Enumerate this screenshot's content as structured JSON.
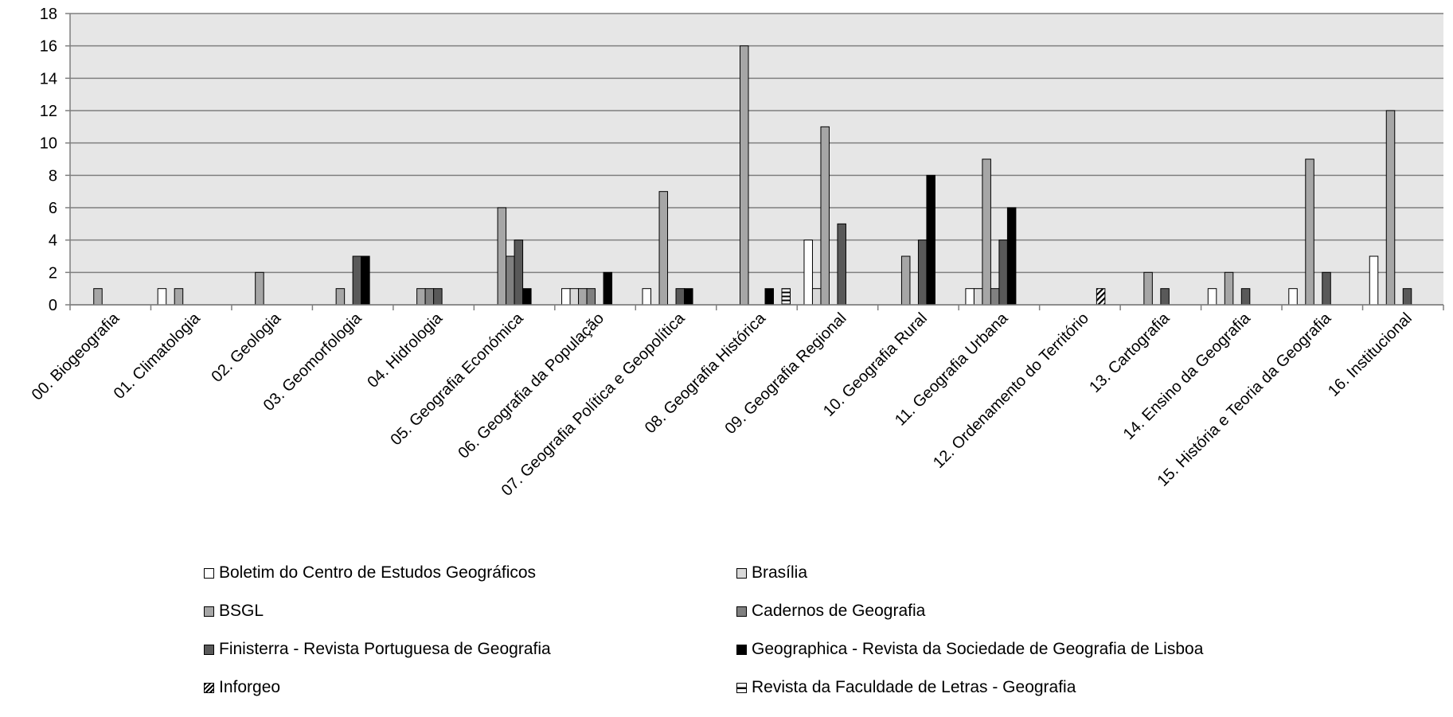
{
  "chart_data": {
    "type": "bar",
    "title": "",
    "xlabel": "",
    "ylabel": "",
    "ylim": [
      0,
      18
    ],
    "yticks": [
      0,
      2,
      4,
      6,
      8,
      10,
      12,
      14,
      16,
      18
    ],
    "grid": true,
    "legend_position": "bottom",
    "categories": [
      "00. Biogeografia",
      "01. Climatologia",
      "02. Geologia",
      "03. Geomorfologia",
      "04. Hidrologia",
      "05. Geografia Económica",
      "06. Geografia da População",
      "07. Geografia Política e Geopolítica",
      "08. Geografia Histórica",
      "09. Geografia Regional",
      "10. Geografia Rural",
      "11. Geografia Urbana",
      "12. Ordenamento do Território",
      "13. Cartografia",
      "14. Ensino da Geografia",
      "15. História e Teoria da Geografia",
      "16. Institucional"
    ],
    "series": [
      {
        "name": "Boletim do Centro de Estudos Geográficos",
        "fill": "#ffffff",
        "pattern": "none",
        "values": [
          0,
          1,
          0,
          0,
          0,
          0,
          1,
          1,
          0,
          4,
          0,
          1,
          0,
          0,
          1,
          1,
          3
        ]
      },
      {
        "name": "Brasília",
        "fill": "#d9d9d9",
        "pattern": "none",
        "values": [
          0,
          0,
          0,
          0,
          0,
          0,
          1,
          0,
          0,
          1,
          0,
          1,
          0,
          0,
          0,
          0,
          0
        ]
      },
      {
        "name": "BSGL",
        "fill": "#a6a6a6",
        "pattern": "none",
        "values": [
          1,
          1,
          2,
          1,
          1,
          6,
          1,
          7,
          16,
          11,
          3,
          9,
          0,
          2,
          2,
          9,
          12
        ]
      },
      {
        "name": "Cadernos de Geografia",
        "fill": "#808080",
        "pattern": "none",
        "values": [
          0,
          0,
          0,
          0,
          1,
          3,
          1,
          0,
          0,
          0,
          0,
          1,
          0,
          0,
          0,
          0,
          0
        ]
      },
      {
        "name": "Finisterra - Revista Portuguesa de Geografia",
        "fill": "#595959",
        "pattern": "none",
        "values": [
          0,
          0,
          0,
          3,
          1,
          4,
          0,
          1,
          0,
          5,
          4,
          4,
          0,
          1,
          1,
          2,
          1
        ]
      },
      {
        "name": "Geographica - Revista da Sociedade de Geografia de Lisboa",
        "fill": "#000000",
        "pattern": "none",
        "values": [
          0,
          0,
          0,
          3,
          0,
          1,
          2,
          1,
          1,
          0,
          8,
          6,
          0,
          0,
          0,
          0,
          0
        ]
      },
      {
        "name": "Inforgeo",
        "fill": "#ffffff",
        "pattern": "diagonal",
        "values": [
          0,
          0,
          0,
          0,
          0,
          0,
          0,
          0,
          0,
          0,
          0,
          0,
          1,
          0,
          0,
          0,
          0
        ]
      },
      {
        "name": "Revista da Faculdade de Letras - Geografia",
        "fill": "#ffffff",
        "pattern": "horizontal",
        "values": [
          0,
          0,
          0,
          0,
          0,
          0,
          0,
          0,
          1,
          0,
          0,
          0,
          0,
          0,
          0,
          0,
          0
        ]
      }
    ]
  }
}
